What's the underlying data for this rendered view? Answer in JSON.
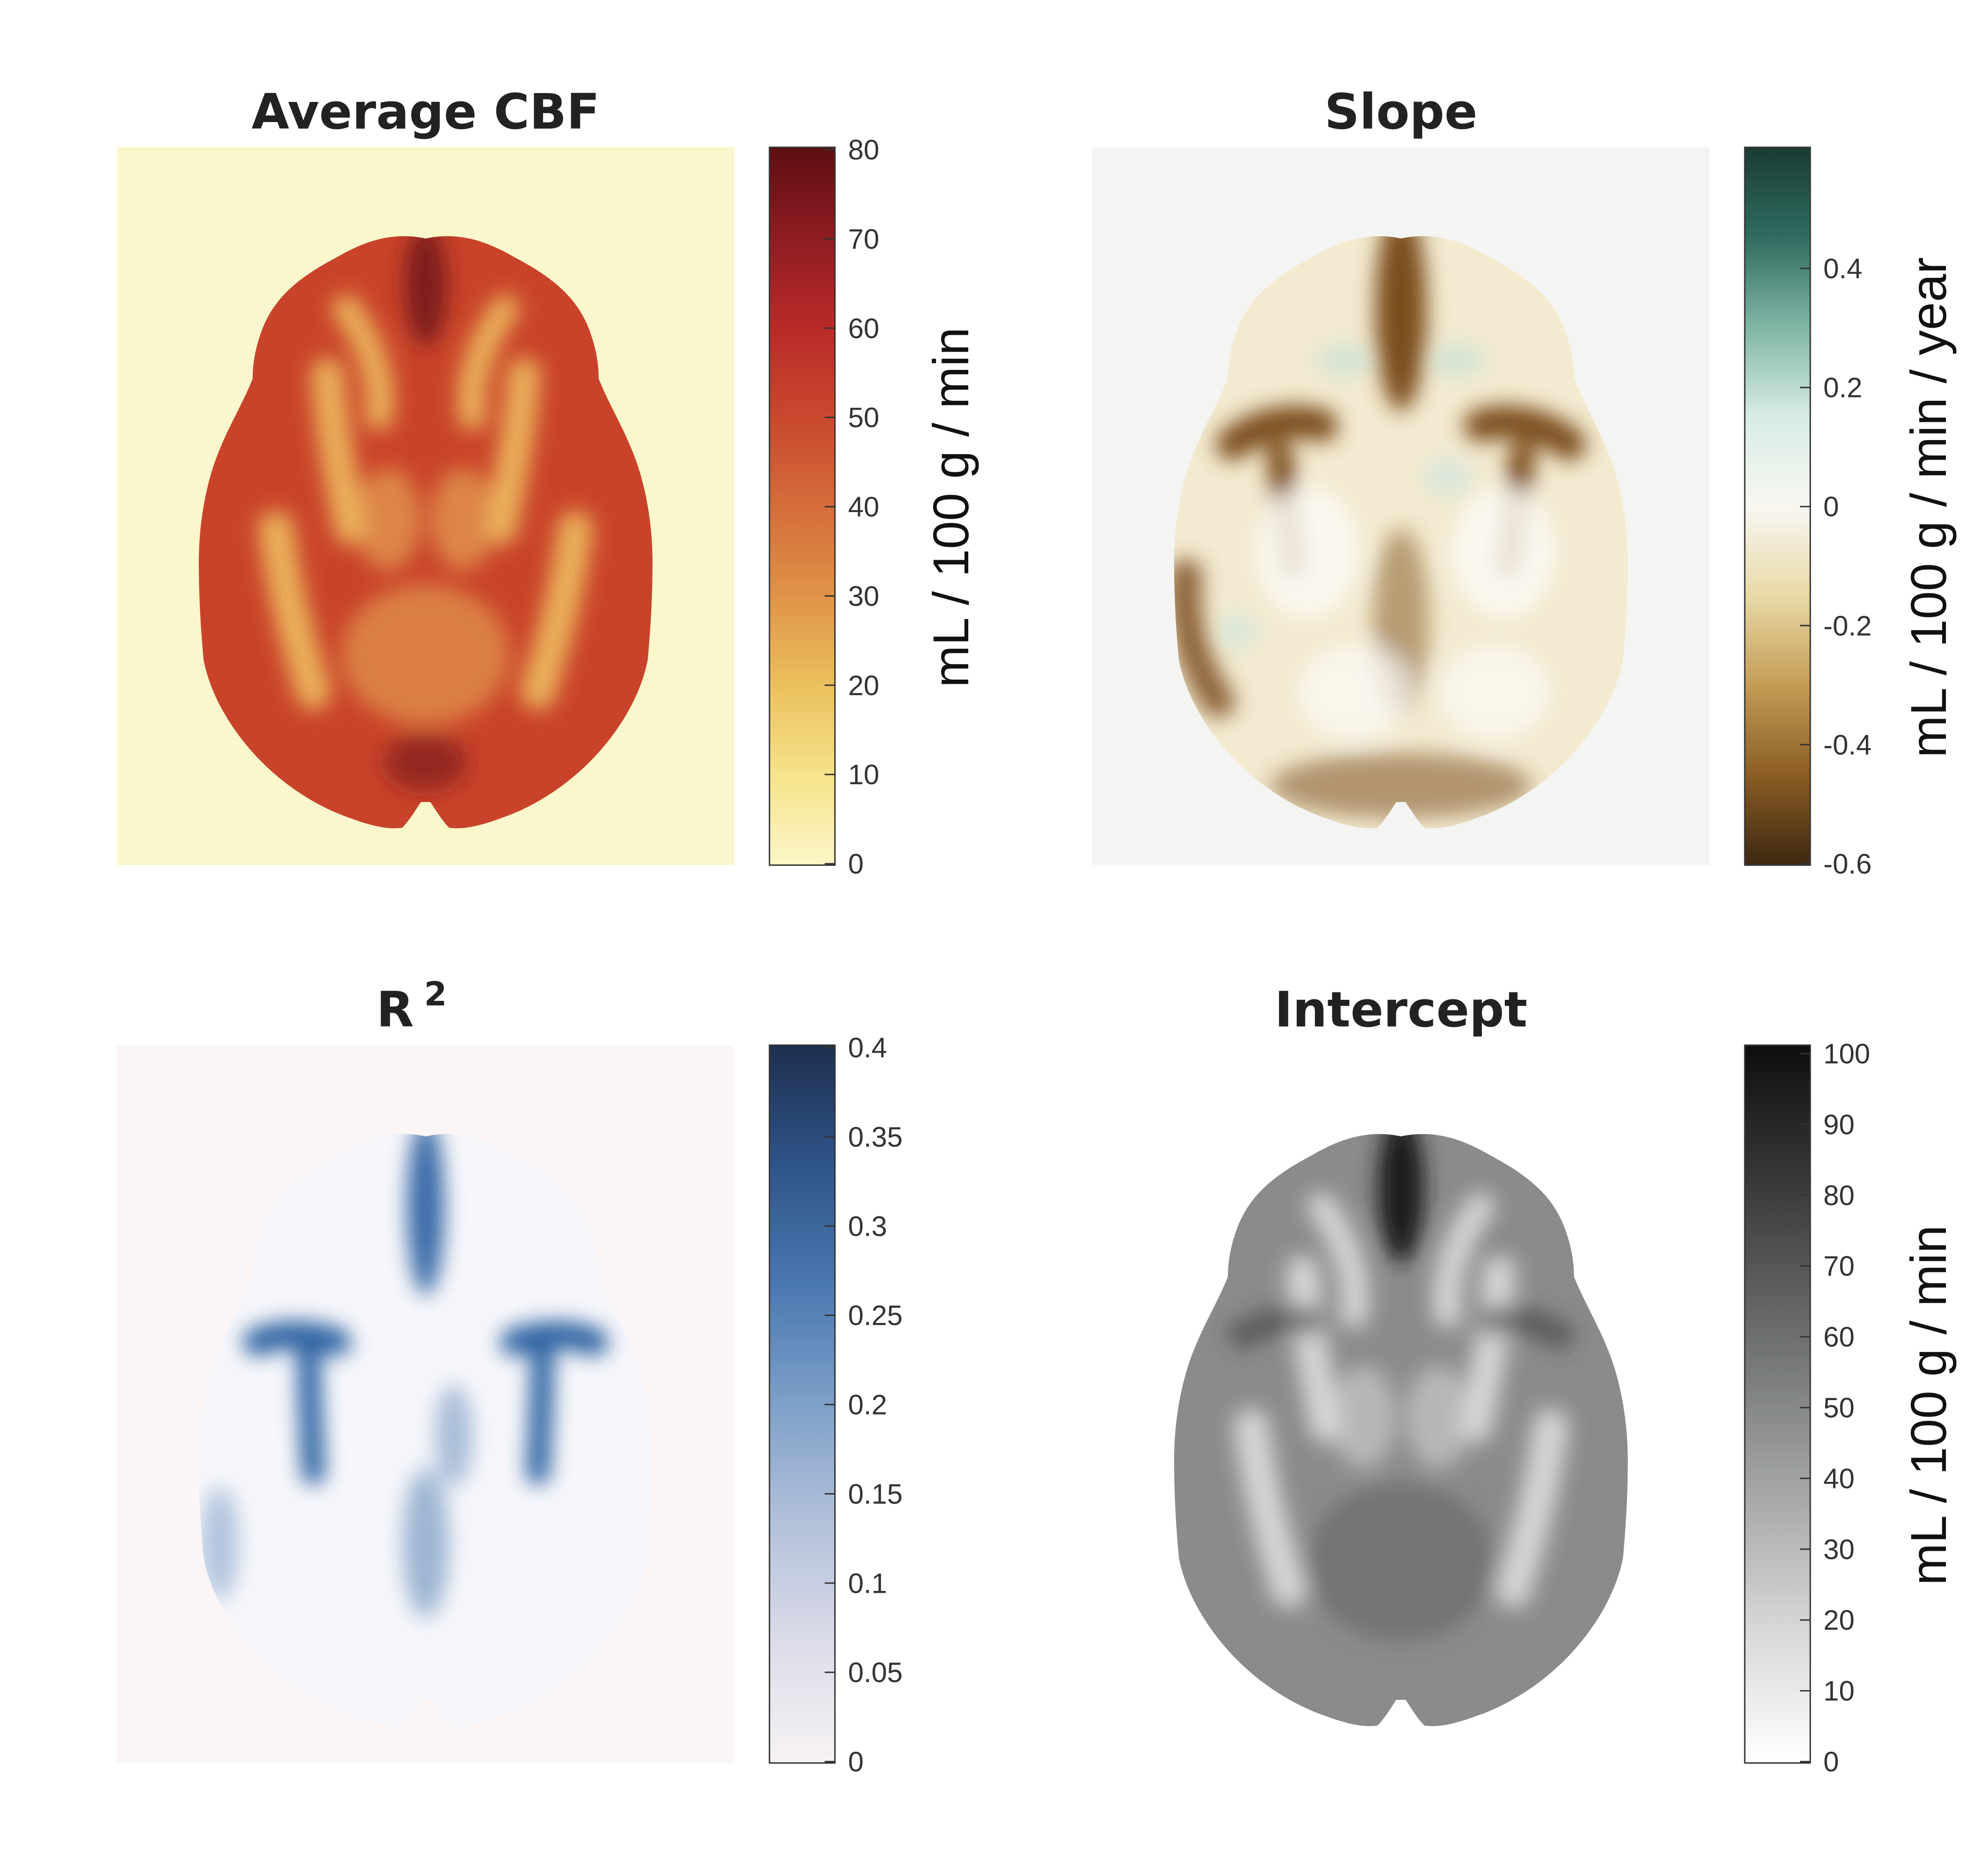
{
  "panels": [
    {
      "id": "avg-cbf",
      "title": "Average CBF",
      "title_superscript": "",
      "colorbar_label": "mL / 100 g / min",
      "ticks": [
        "80",
        "70",
        "60",
        "50",
        "40",
        "30",
        "20",
        "10",
        "0"
      ],
      "colormap": [
        "#5e0f12",
        "#8e1c22",
        "#b82a28",
        "#c9482e",
        "#d46c3a",
        "#df9347",
        "#ebc05e",
        "#f6e38a",
        "#fbf6c8"
      ],
      "background": "#fbf7cc",
      "brain_palette": {
        "base": "#c9432a",
        "light": "#eab15a",
        "dark": "#7d1d1f"
      }
    },
    {
      "id": "slope",
      "title": "Slope",
      "title_superscript": "",
      "colorbar_label": "mL / 100 g / min / year",
      "ticks": [
        "0.4",
        "0.2",
        "0",
        "-0.2",
        "-0.4",
        "-0.6"
      ],
      "colormap": [
        "#1a3b35",
        "#2f6d60",
        "#7fb5a5",
        "#d7ece5",
        "#f8f7f1",
        "#e8d9a6",
        "#c49b55",
        "#8b5d24",
        "#3d2812"
      ],
      "background": "#f4f4f2",
      "brain_palette": {
        "base": "#f3ead0",
        "light": "#fbfaf5",
        "dark": "#7c4e1c"
      }
    },
    {
      "id": "r-squared",
      "title": "R",
      "title_superscript": "2",
      "colorbar_label": "",
      "ticks": [
        "0.4",
        "0.35",
        "0.3",
        "0.25",
        "0.2",
        "0.15",
        "0.1",
        "0.05",
        "0"
      ],
      "colormap": [
        "#1e2f4f",
        "#2f5488",
        "#4a78b0",
        "#7ea0c8",
        "#b3c1db",
        "#dcdce9",
        "#f7f3f4"
      ],
      "background": "#fbf5f5",
      "brain_palette": {
        "base": "#f7f7fb",
        "light": "#ffffff",
        "dark": "#2f63a2"
      }
    },
    {
      "id": "intercept",
      "title": "Intercept",
      "title_superscript": "",
      "colorbar_label": "mL / 100 g / min",
      "ticks": [
        "100",
        "90",
        "80",
        "70",
        "60",
        "50",
        "40",
        "30",
        "20",
        "10",
        "0"
      ],
      "colormap": [
        "#0c0f0d",
        "#3a3c3b",
        "#6b6e6c",
        "#9ea19f",
        "#d3d5d3",
        "#ffffff"
      ],
      "background": "#ffffff",
      "brain_palette": {
        "base": "#8a8c8b",
        "light": "#d4d6d4",
        "dark": "#1a1c1b"
      }
    }
  ]
}
